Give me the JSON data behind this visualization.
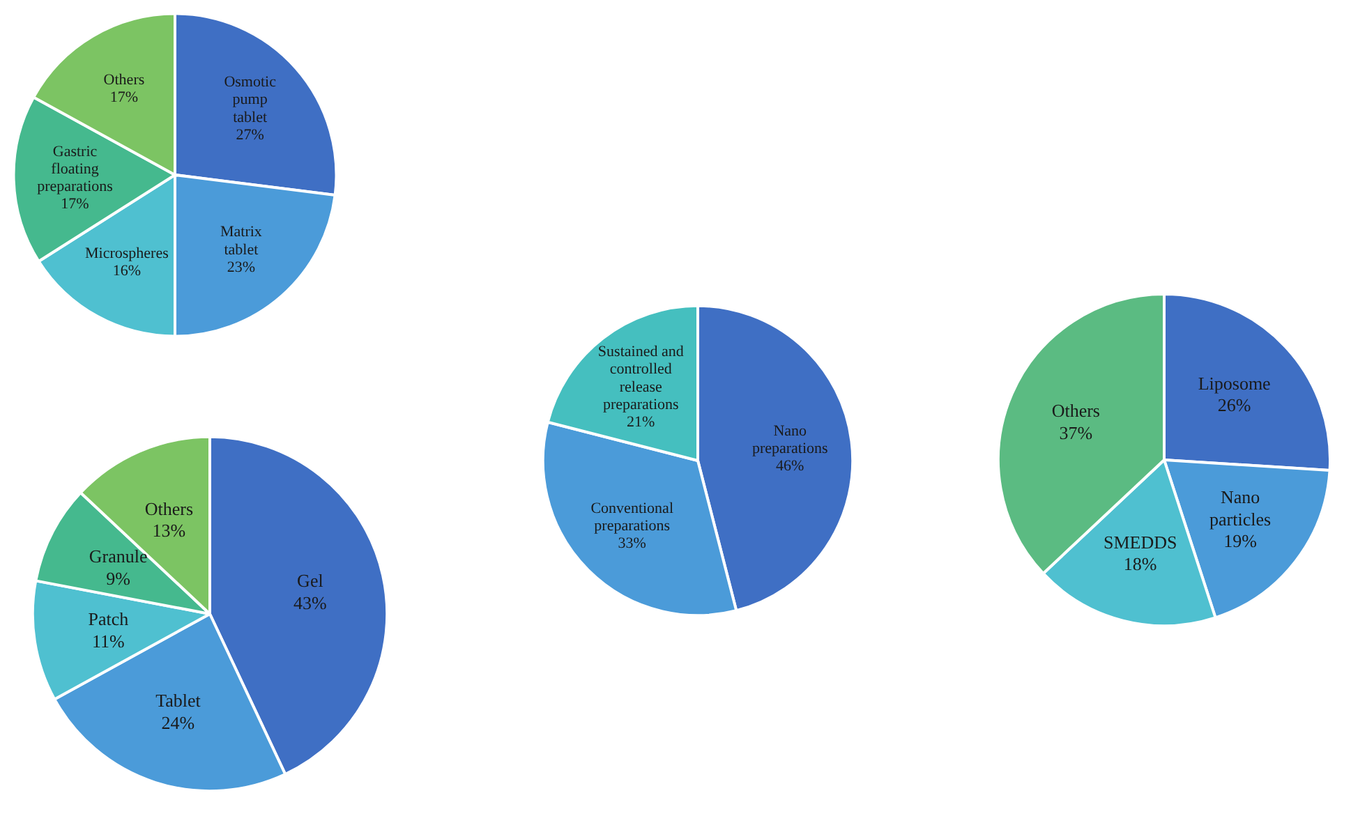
{
  "chart_data": [
    {
      "type": "pie",
      "categories": [
        "Osmotic pump tablet",
        "Matrix tablet",
        "Microspheres",
        "Gastric floating preparations",
        "Others"
      ],
      "values": [
        27,
        23,
        16,
        17,
        17
      ],
      "value_labels": [
        "27%",
        "23%",
        "16%",
        "17%",
        "17%"
      ],
      "colors": [
        "#3f6fc4",
        "#4b9bd9",
        "#4fc0d0",
        "#45b98e",
        "#7cc463"
      ]
    },
    {
      "type": "pie",
      "categories": [
        "Gel",
        "Tablet",
        "Patch",
        "Granule",
        "Others"
      ],
      "values": [
        43,
        24,
        11,
        9,
        13
      ],
      "value_labels": [
        "43%",
        "24%",
        "11%",
        "9%",
        "13%"
      ],
      "colors": [
        "#3f6fc4",
        "#4b9bd9",
        "#4fc0d0",
        "#45b98e",
        "#7cc463"
      ]
    },
    {
      "type": "pie",
      "categories": [
        "Nano preparations",
        "Conventional preparations",
        "Sustained and controlled release preparations"
      ],
      "values": [
        46,
        33,
        21
      ],
      "value_labels": [
        "46%",
        "33%",
        "21%"
      ],
      "colors": [
        "#3f6fc4",
        "#4b9bd9",
        "#45bfbf"
      ]
    },
    {
      "type": "pie",
      "categories": [
        "Liposome",
        "Nano particles",
        "SMEDDS",
        "Others"
      ],
      "values": [
        26,
        19,
        18,
        37
      ],
      "value_labels": [
        "26%",
        "19%",
        "18%",
        "37%"
      ],
      "colors": [
        "#3f6fc4",
        "#4b9bd9",
        "#4fc0d0",
        "#5bbb82"
      ]
    }
  ]
}
